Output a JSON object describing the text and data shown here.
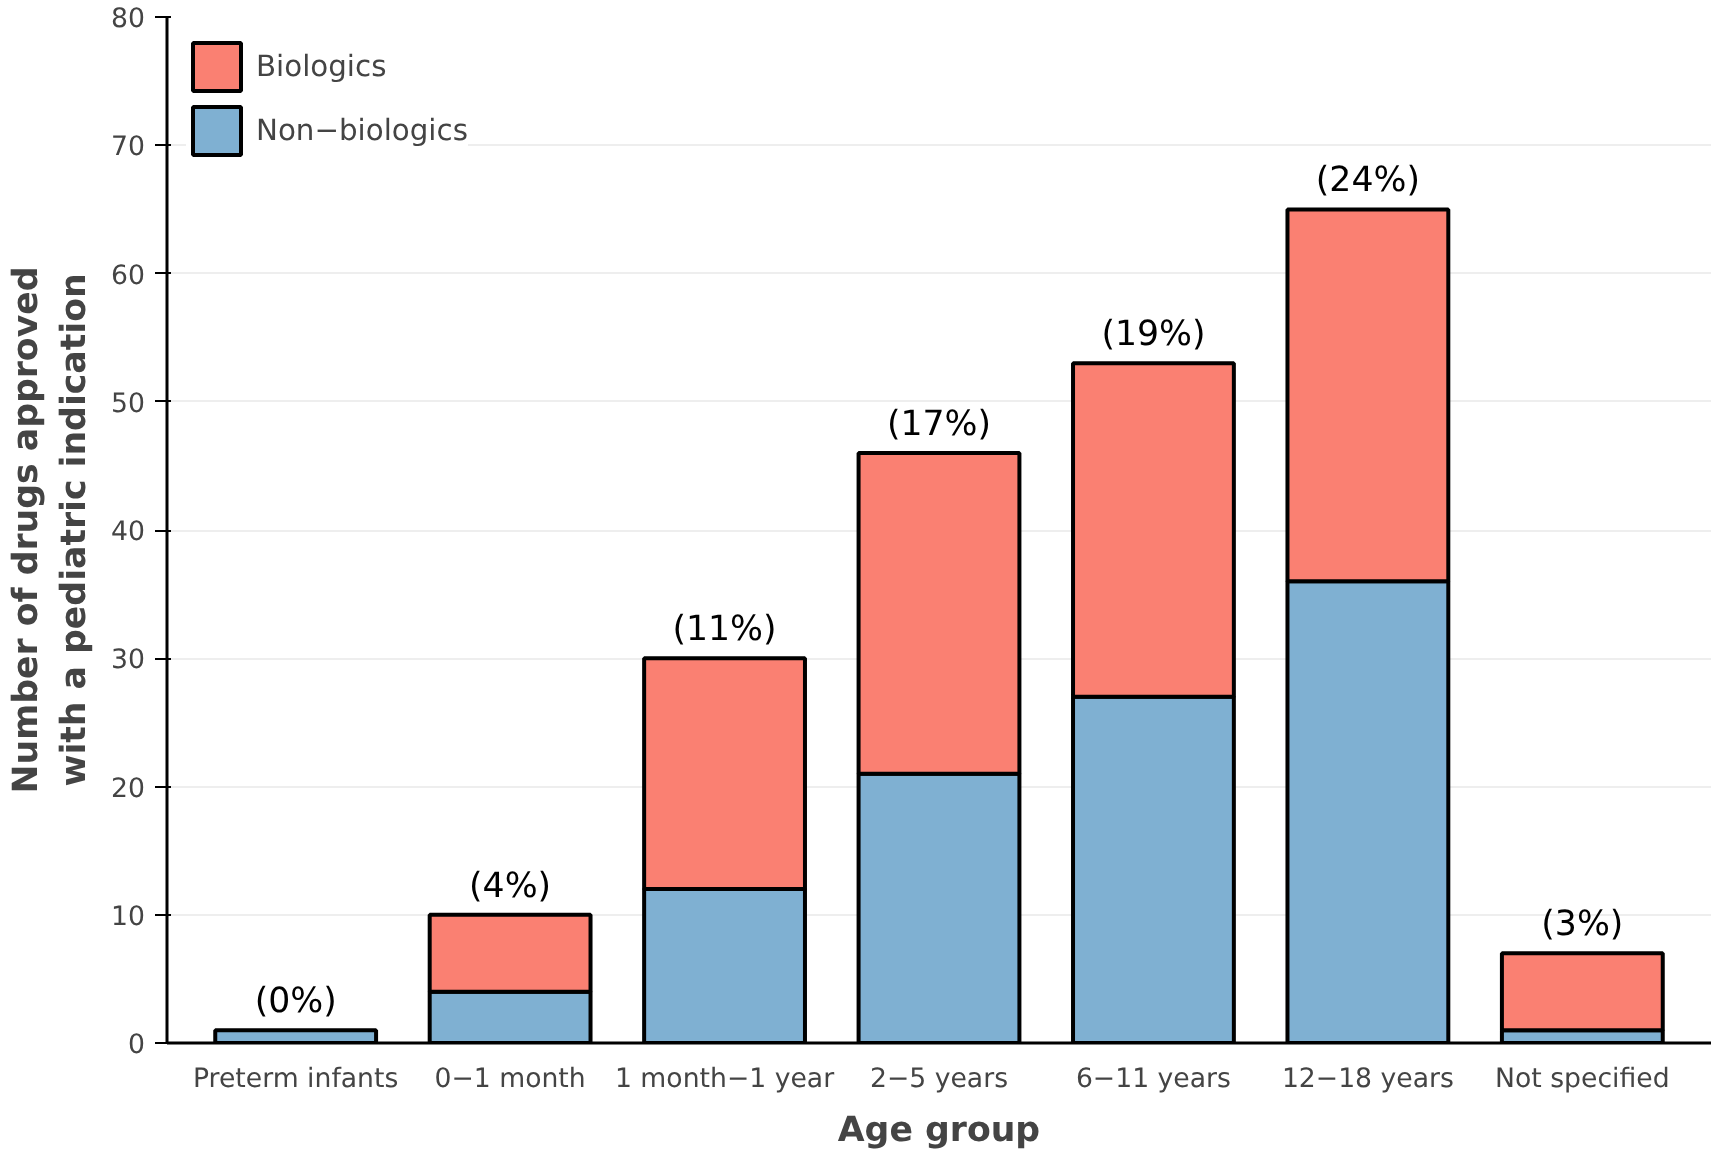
{
  "chart_data": {
    "type": "bar",
    "stacked": true,
    "xlabel": "Age group",
    "ylabel": "Number of drugs approved\nwith a pediatric indication",
    "categories": [
      "Preterm infants",
      "0−1 month",
      "1 month−1 year",
      "2−5 years",
      "6−11 years",
      "12−18 years",
      "Not specified"
    ],
    "series": [
      {
        "name": "Non−biologics",
        "color": "#7fb0d2",
        "values": [
          1,
          4,
          12,
          21,
          27,
          36,
          1
        ]
      },
      {
        "name": "Biologics",
        "color": "#fa8072",
        "values": [
          null,
          6,
          18,
          25,
          26,
          29,
          6
        ]
      }
    ],
    "annotations": [
      {
        "text": "(0%)",
        "x": "Preterm infants",
        "y": 1
      },
      {
        "text": "(4%)",
        "x": "0−1 month",
        "y": 10
      },
      {
        "text": "(11%)",
        "x": "1 month−1 year",
        "y": 30
      },
      {
        "text": "(17%)",
        "x": "2−5 years",
        "y": 46
      },
      {
        "text": "(19%)",
        "x": "6−11 years",
        "y": 53
      },
      {
        "text": "(24%)",
        "x": "12−18 years",
        "y": 65
      },
      {
        "text": "(3%)",
        "x": "Not specified",
        "y": 7
      }
    ],
    "ylim": [
      0,
      80
    ],
    "yticks": [
      0,
      10,
      20,
      30,
      40,
      50,
      60,
      70,
      80
    ],
    "grid": "y",
    "legend": "top left"
  }
}
